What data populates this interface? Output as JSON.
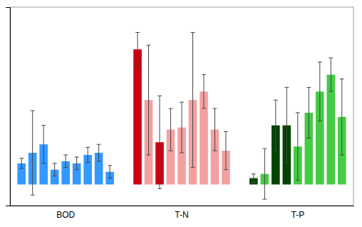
{
  "chart_data": {
    "type": "bar",
    "groups": [
      {
        "label": "BOD",
        "values": [
          5.0,
          7.5,
          9.5,
          3.5,
          5.5,
          5.0,
          7.0,
          7.5,
          3.0
        ],
        "errors": [
          1.2,
          10.0,
          4.5,
          1.5,
          1.5,
          1.5,
          1.8,
          2.0,
          1.5
        ],
        "colors": [
          "#3399ff",
          "#3399ff",
          "#3399ff",
          "#3399ff",
          "#3399ff",
          "#3399ff",
          "#3399ff",
          "#3399ff",
          "#3399ff"
        ]
      },
      {
        "label": "T-N",
        "values": [
          32.0,
          20.0,
          10.0,
          13.0,
          13.5,
          20.0,
          22.0,
          13.0,
          8.0
        ],
        "errors": [
          4.0,
          13.0,
          11.0,
          5.0,
          6.0,
          16.0,
          4.0,
          5.0,
          4.5
        ],
        "colors": [
          "#cc0011",
          "#f5a0a0",
          "#cc0011",
          "#f5a0a0",
          "#f5a0a0",
          "#f5a0a0",
          "#f5a0a0",
          "#f5a0a0",
          "#f5a0a0"
        ]
      },
      {
        "label": "T-P",
        "values": [
          1.5,
          2.5,
          14.0,
          14.0,
          9.0,
          17.0,
          22.0,
          26.0,
          16.0
        ],
        "errors": [
          1.0,
          6.0,
          6.0,
          9.0,
          8.0,
          6.0,
          7.0,
          4.0,
          9.0
        ],
        "colors": [
          "#004400",
          "#44cc44",
          "#004400",
          "#004400",
          "#44cc44",
          "#44cc44",
          "#44cc44",
          "#44cc44",
          "#44cc44"
        ]
      }
    ],
    "ylim": [
      -5,
      42
    ],
    "tick_labels": "x"
  }
}
